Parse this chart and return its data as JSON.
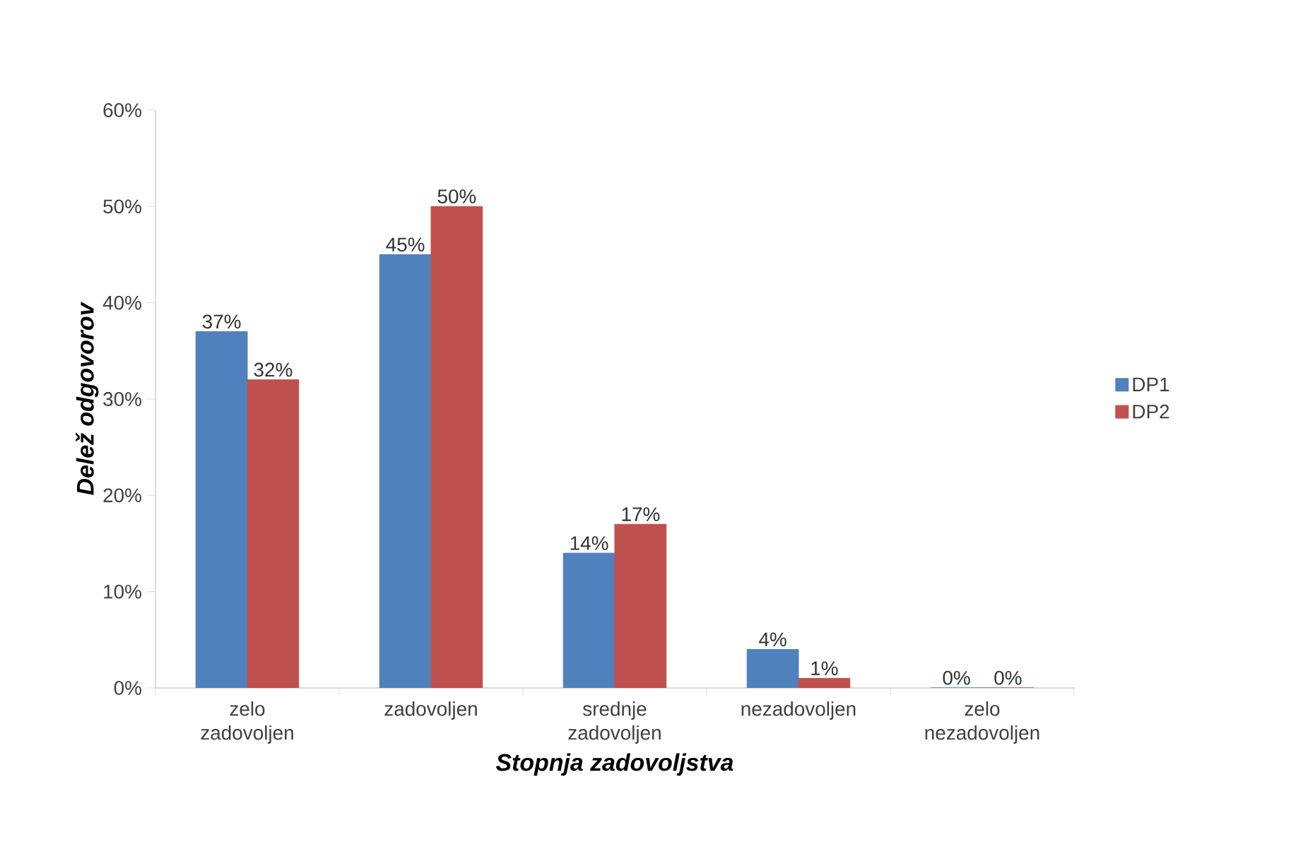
{
  "chart_data": {
    "type": "bar",
    "xlabel": "Stopnja zadovoljstva",
    "ylabel": "Delež odgovorov",
    "categories": [
      "zelo zadovoljen",
      "zadovoljen",
      "srednje zadovoljen",
      "nezadovoljen",
      "zelo nezadovoljen"
    ],
    "series": [
      {
        "name": "DP1",
        "color": "#4f81bd",
        "values": [
          37,
          45,
          14,
          4,
          0
        ],
        "value_labels": [
          "37%",
          "45%",
          "14%",
          "4%",
          "0%"
        ]
      },
      {
        "name": "DP2",
        "color": "#c0504d",
        "values": [
          32,
          50,
          17,
          1,
          0
        ],
        "value_labels": [
          "32%",
          "50%",
          "17%",
          "1%",
          "0%"
        ]
      }
    ],
    "ylim": [
      0,
      60
    ],
    "yticks": [
      {
        "value": 0,
        "label": "0%"
      },
      {
        "value": 10,
        "label": "10%"
      },
      {
        "value": 20,
        "label": "20%"
      },
      {
        "value": 30,
        "label": "30%"
      },
      {
        "value": 40,
        "label": "40%"
      },
      {
        "value": 50,
        "label": "50%"
      },
      {
        "value": 60,
        "label": "60%"
      }
    ],
    "grid": false,
    "legend": "right"
  }
}
